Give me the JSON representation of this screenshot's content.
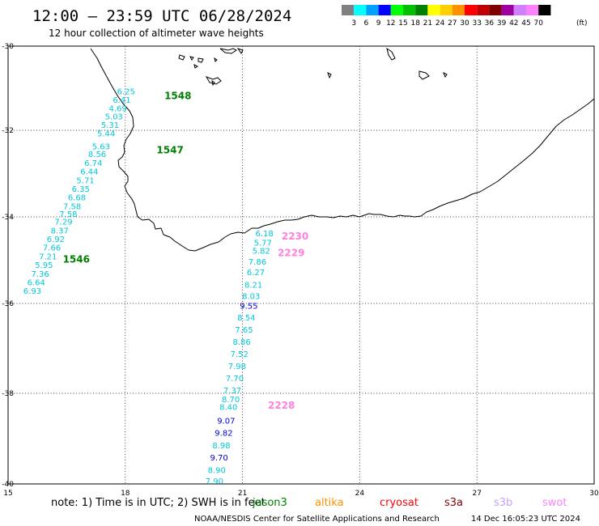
{
  "header": {
    "title": "12:00 – 23:59 UTC 06/28/2024",
    "subtitle": "12 hour collection of altimeter wave heights"
  },
  "color_scale": {
    "unit": "(ft)",
    "colors": [
      "#808080",
      "#00ffff",
      "#00a0ff",
      "#0000ff",
      "#00ff00",
      "#00c000",
      "#008000",
      "#ffff00",
      "#ffd000",
      "#ff9000",
      "#ff0000",
      "#c00000",
      "#800000",
      "#a000a0",
      "#d080ff",
      "#ff80ff",
      "#000000"
    ],
    "labels": [
      "3",
      "6",
      "9",
      "12",
      "15",
      "18",
      "21",
      "24",
      "27",
      "30",
      "33",
      "36",
      "39",
      "42",
      "45",
      "70"
    ]
  },
  "axes": {
    "lon_labels": [
      "15",
      "18",
      "21",
      "24",
      "27",
      "30"
    ],
    "lat_labels": [
      "-30",
      "-32",
      "-34",
      "-36",
      "-38",
      "-40"
    ]
  },
  "tracks": [
    {
      "pass_labels": [
        {
          "text": "1548",
          "lon": 19.0,
          "lat": -31.18
        },
        {
          "text": "1547",
          "lon": 18.8,
          "lat": -32.46
        },
        {
          "text": "1546",
          "lon": 16.4,
          "lat": -34.98
        }
      ],
      "points": [
        {
          "v": "6.25",
          "lon": 18.02,
          "lat": -31.14
        },
        {
          "v": "6.41",
          "lon": 17.91,
          "lat": -31.35
        },
        {
          "v": "4.69",
          "lon": 17.81,
          "lat": -31.55
        },
        {
          "v": "5.03",
          "lon": 17.71,
          "lat": -31.74
        },
        {
          "v": "5.31",
          "lon": 17.61,
          "lat": -31.94
        },
        {
          "v": "5.44",
          "lon": 17.51,
          "lat": -32.14
        },
        {
          "v": "5.63",
          "lon": 17.38,
          "lat": -32.44
        },
        {
          "v": "8.56",
          "lon": 17.28,
          "lat": -32.62
        },
        {
          "v": "6.74",
          "lon": 17.18,
          "lat": -32.82
        },
        {
          "v": "6.44",
          "lon": 17.08,
          "lat": -33.02
        },
        {
          "v": "5.71",
          "lon": 16.98,
          "lat": -33.22
        },
        {
          "v": "6.35",
          "lon": 16.86,
          "lat": -33.42
        },
        {
          "v": "6.68",
          "lon": 16.76,
          "lat": -33.62
        },
        {
          "v": "7.58",
          "lon": 16.64,
          "lat": -33.82
        },
        {
          "v": "7.58",
          "lon": 16.54,
          "lat": -34.0
        },
        {
          "v": "7.29",
          "lon": 16.42,
          "lat": -34.18
        },
        {
          "v": "8.37",
          "lon": 16.32,
          "lat": -34.38
        },
        {
          "v": "6.92",
          "lon": 16.22,
          "lat": -34.58
        },
        {
          "v": "7.66",
          "lon": 16.12,
          "lat": -34.78
        },
        {
          "v": "7.21",
          "lon": 16.02,
          "lat": -34.98
        },
        {
          "v": "5.95",
          "lon": 15.92,
          "lat": -35.18
        },
        {
          "v": "7.36",
          "lon": 15.82,
          "lat": -35.38
        },
        {
          "v": "6.64",
          "lon": 15.72,
          "lat": -35.58
        },
        {
          "v": "6.93",
          "lon": 15.62,
          "lat": -35.78
        }
      ]
    },
    {
      "pass_labels": [
        {
          "text": "2230",
          "lon": 22.0,
          "lat": -34.45
        },
        {
          "text": "2229",
          "lon": 21.9,
          "lat": -34.83
        },
        {
          "text": "2228",
          "lon": 21.65,
          "lat": -38.27
        }
      ],
      "points": [
        {
          "v": "6.18",
          "lon": 21.56,
          "lat": -34.45
        },
        {
          "v": "5.77",
          "lon": 21.52,
          "lat": -34.66
        },
        {
          "v": "5.82",
          "lon": 21.48,
          "lat": -34.85
        },
        {
          "v": "7.86",
          "lon": 21.38,
          "lat": -35.1
        },
        {
          "v": "6.27",
          "lon": 21.34,
          "lat": -35.35
        },
        {
          "v": "8.21",
          "lon": 21.28,
          "lat": -35.64
        },
        {
          "v": "8.03",
          "lon": 21.22,
          "lat": -35.9
        },
        {
          "v": "9.55",
          "lon": 21.16,
          "lat": -36.12
        },
        {
          "v": "8.54",
          "lon": 21.1,
          "lat": -36.38
        },
        {
          "v": "7.65",
          "lon": 21.04,
          "lat": -36.65
        },
        {
          "v": "8.86",
          "lon": 20.98,
          "lat": -36.92
        },
        {
          "v": "7.52",
          "lon": 20.92,
          "lat": -37.19
        },
        {
          "v": "7.98",
          "lon": 20.86,
          "lat": -37.46
        },
        {
          "v": "7.70",
          "lon": 20.8,
          "lat": -37.73
        },
        {
          "v": "7.37",
          "lon": 20.74,
          "lat": -38.0
        },
        {
          "v": "8.70",
          "lon": 20.7,
          "lat": -38.2
        },
        {
          "v": "8.40",
          "lon": 20.64,
          "lat": -38.37
        },
        {
          "v": "9.07",
          "lon": 20.58,
          "lat": -38.67
        },
        {
          "v": "9.82",
          "lon": 20.52,
          "lat": -38.94
        },
        {
          "v": "8.98",
          "lon": 20.46,
          "lat": -39.21
        },
        {
          "v": "9.70",
          "lon": 20.4,
          "lat": -39.48
        },
        {
          "v": "8.90",
          "lon": 20.34,
          "lat": -39.76
        },
        {
          "v": "7.90",
          "lon": 20.28,
          "lat": -40.03
        }
      ]
    }
  ],
  "footer": {
    "note": "note: 1) Time is in UTC; 2) SWH is in feet",
    "satellites": [
      {
        "name": "jason3",
        "color": "#008000"
      },
      {
        "name": "altika",
        "color": "#ff9000"
      },
      {
        "name": "cryosat",
        "color": "#ff0000"
      },
      {
        "name": "s3a",
        "color": "#800000"
      },
      {
        "name": "s3b",
        "color": "#c8a0ff"
      },
      {
        "name": "swot",
        "color": "#ff80ff"
      }
    ],
    "credit": "NOAA/NESDIS Center for Satellite Applications and Research",
    "timestamp": "14 Dec 16:05:23 UTC 2024"
  }
}
